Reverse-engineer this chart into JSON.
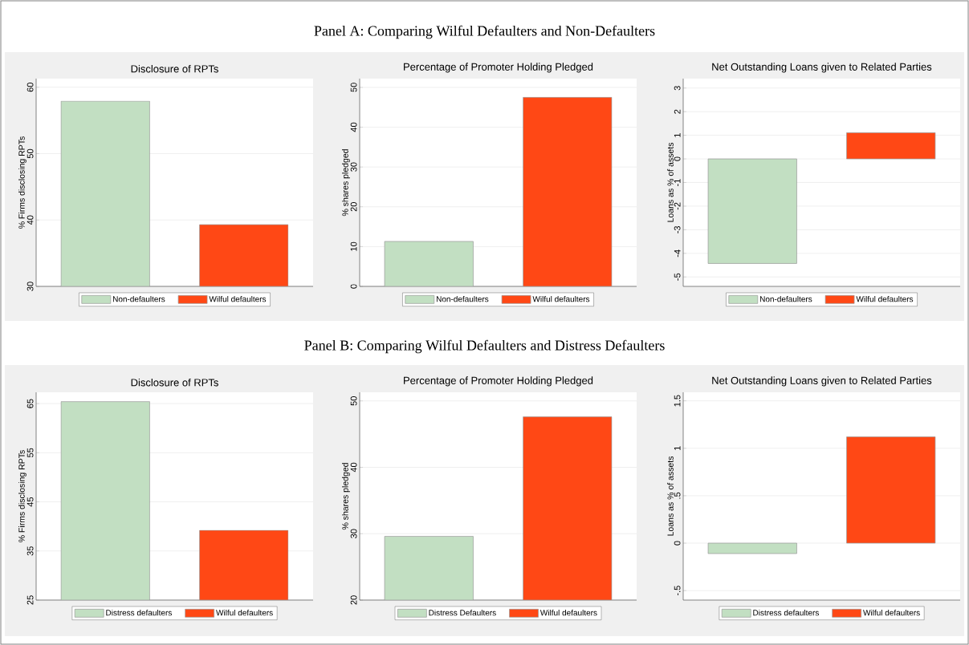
{
  "chart_data": [
    {
      "type": "bar",
      "title": "Disclosure of RPTs",
      "ylabel": "% Firms disclosing RPTs",
      "annotations": [
        "Panel A: Comparing Wilful Defaulters and Non-Defaulters"
      ],
      "categories": [
        null,
        null
      ],
      "ylim": [
        30,
        61.3
      ],
      "yticks": [
        30,
        40,
        50,
        60
      ],
      "grid": "y",
      "legend": "bottom",
      "tick_labels": "y",
      "series": [
        {
          "name": "Non-defaulters",
          "color": "#c2dfc2",
          "values": [
            57.9,
            null
          ]
        },
        {
          "name": "Wilful defaulters",
          "color": "#ff4815",
          "values": [
            null,
            39.3
          ]
        }
      ]
    },
    {
      "type": "bar",
      "title": "Percentage of Promoter Holding Pledged",
      "ylabel": "% shares pledged",
      "categories": [
        null,
        null
      ],
      "ylim": [
        0,
        52.2
      ],
      "yticks": [
        0,
        10,
        20,
        30,
        40,
        50
      ],
      "grid": "y",
      "legend": "bottom",
      "tick_labels": "y",
      "series": [
        {
          "name": "Non-defaulters",
          "color": "#c2dfc2",
          "values": [
            11.3,
            null
          ]
        },
        {
          "name": "Wilful defaulters",
          "color": "#ff4815",
          "values": [
            null,
            47.5
          ]
        }
      ]
    },
    {
      "type": "bar",
      "title": "Net Outstanding Loans given to Related Parties",
      "ylabel": "Loans as % of assets",
      "categories": [
        null,
        null
      ],
      "ylim": [
        -5.4,
        3.4
      ],
      "yticks": [
        -5,
        -4,
        -3,
        -2,
        -1,
        0,
        1,
        2,
        3
      ],
      "grid": "y",
      "legend": "bottom",
      "tick_labels": "y",
      "series": [
        {
          "name": "Non-defaulters",
          "color": "#c2dfc2",
          "values": [
            -4.43,
            null
          ]
        },
        {
          "name": "Wilful defaulters",
          "color": "#ff4815",
          "values": [
            null,
            1.11
          ]
        }
      ]
    },
    {
      "type": "bar",
      "title": "Disclosure of RPTs",
      "ylabel": "% Firms disclosing RPTs",
      "annotations": [
        "Panel B: Comparing Wilful Defaulters and Distress Defaulters"
      ],
      "categories": [
        null,
        null
      ],
      "ylim": [
        25,
        67.3
      ],
      "yticks": [
        25,
        35,
        45,
        55,
        65
      ],
      "grid": "y",
      "legend": "bottom",
      "tick_labels": "y",
      "series": [
        {
          "name": "Distress defaulters",
          "color": "#c2dfc2",
          "values": [
            65.4,
            null
          ]
        },
        {
          "name": "Wilful defaulters",
          "color": "#ff4815",
          "values": [
            null,
            39.2
          ]
        }
      ]
    },
    {
      "type": "bar",
      "title": "Percentage of Promoter Holding Pledged",
      "ylabel": "% shares pledged",
      "categories": [
        null,
        null
      ],
      "ylim": [
        20,
        51.3
      ],
      "yticks": [
        20,
        30,
        40,
        50
      ],
      "grid": "y",
      "legend": "bottom",
      "tick_labels": "y",
      "series": [
        {
          "name": "Distress Defaulters",
          "color": "#c2dfc2",
          "values": [
            29.6,
            null
          ]
        },
        {
          "name": "Wilful defaulters",
          "color": "#ff4815",
          "values": [
            null,
            47.6
          ]
        }
      ]
    },
    {
      "type": "bar",
      "title": "Net Outstanding Loans given to Related Parties",
      "ylabel": "Loans as % of assets",
      "categories": [
        null,
        null
      ],
      "ylim": [
        -0.6,
        1.59
      ],
      "yticks": [
        {
          "value": -0.5,
          "label": "-.5"
        },
        0,
        {
          "value": 0.5,
          "label": ".5"
        },
        1,
        1.5
      ],
      "grid": "y",
      "legend": "bottom",
      "tick_labels": "y",
      "series": [
        {
          "name": "Distress defaulters",
          "color": "#c2dfc2",
          "values": [
            -0.11,
            null
          ]
        },
        {
          "name": "Wilful defaulters",
          "color": "#ff4815",
          "values": [
            null,
            1.12
          ]
        }
      ]
    }
  ]
}
